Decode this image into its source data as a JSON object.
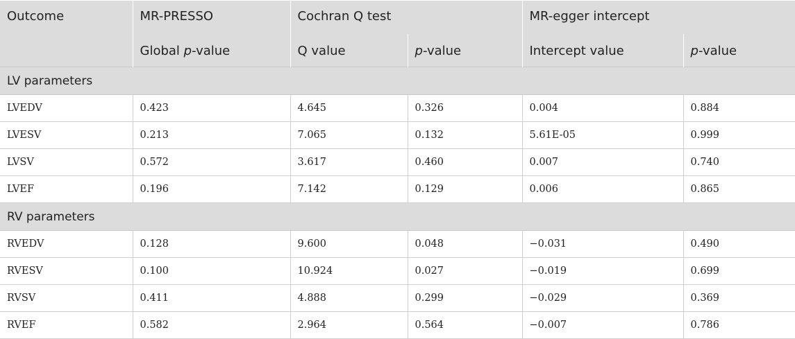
{
  "header": {
    "row1": {
      "outcome": "Outcome",
      "mr_presso": "MR-PRESSO",
      "cochran": "Cochran Q test",
      "egger": "MR-egger intercept"
    },
    "row2": {
      "global_prefix": "Global ",
      "p_italic": "p",
      "value_suffix": "-value",
      "q_value": "Q value",
      "intercept_value": "Intercept value"
    }
  },
  "sections": [
    {
      "title": "LV parameters",
      "rows": [
        [
          "LVEDV",
          "0.423",
          "4.645",
          "0.326",
          "0.004",
          "0.884"
        ],
        [
          "LVESV",
          "0.213",
          "7.065",
          "0.132",
          "5.61E-05",
          "0.999"
        ],
        [
          "LVSV",
          "0.572",
          "3.617",
          "0.460",
          "0.007",
          "0.740"
        ],
        [
          "LVEF",
          "0.196",
          "7.142",
          "0.129",
          "0.006",
          "0.865"
        ]
      ]
    },
    {
      "title": "RV parameters",
      "rows": [
        [
          "RVEDV",
          "0.128",
          "9.600",
          "0.048",
          "−0.031",
          "0.490"
        ],
        [
          "RVESV",
          "0.100",
          "10.924",
          "0.027",
          "−0.019",
          "0.699"
        ],
        [
          "RVSV",
          "0.411",
          "4.888",
          "0.299",
          "−0.029",
          "0.369"
        ],
        [
          "RVEF",
          "0.582",
          "2.964",
          "0.564",
          "−0.007",
          "0.786"
        ]
      ]
    }
  ]
}
